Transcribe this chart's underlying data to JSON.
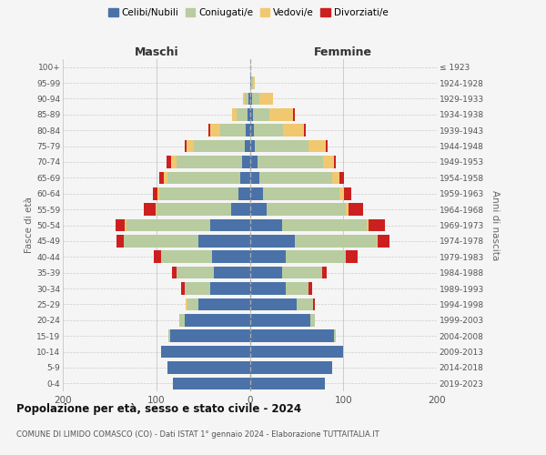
{
  "age_groups": [
    "0-4",
    "5-9",
    "10-14",
    "15-19",
    "20-24",
    "25-29",
    "30-34",
    "35-39",
    "40-44",
    "45-49",
    "50-54",
    "55-59",
    "60-64",
    "65-69",
    "70-74",
    "75-79",
    "80-84",
    "85-89",
    "90-94",
    "95-99",
    "100+"
  ],
  "birth_years": [
    "2019-2023",
    "2014-2018",
    "2009-2013",
    "2004-2008",
    "1999-2003",
    "1994-1998",
    "1989-1993",
    "1984-1988",
    "1979-1983",
    "1974-1978",
    "1969-1973",
    "1964-1968",
    "1959-1963",
    "1954-1958",
    "1949-1953",
    "1944-1948",
    "1939-1943",
    "1934-1938",
    "1929-1933",
    "1924-1928",
    "≤ 1923"
  ],
  "male": {
    "celibi": [
      82,
      88,
      95,
      85,
      70,
      55,
      42,
      38,
      40,
      55,
      42,
      20,
      12,
      10,
      8,
      5,
      4,
      2,
      1,
      0,
      0
    ],
    "coniugati": [
      0,
      0,
      0,
      2,
      5,
      12,
      28,
      40,
      55,
      80,
      90,
      80,
      85,
      78,
      70,
      55,
      28,
      12,
      4,
      0,
      0
    ],
    "vedovi": [
      0,
      0,
      0,
      0,
      0,
      2,
      0,
      0,
      0,
      0,
      2,
      1,
      2,
      4,
      6,
      8,
      10,
      5,
      2,
      0,
      0
    ],
    "divorziati": [
      0,
      0,
      0,
      0,
      0,
      0,
      3,
      5,
      8,
      8,
      10,
      12,
      5,
      5,
      5,
      2,
      2,
      0,
      0,
      0,
      0
    ]
  },
  "female": {
    "nubili": [
      80,
      88,
      100,
      90,
      65,
      50,
      38,
      35,
      38,
      48,
      35,
      18,
      14,
      10,
      8,
      5,
      4,
      3,
      2,
      1,
      0
    ],
    "coniugate": [
      0,
      0,
      0,
      2,
      5,
      18,
      25,
      42,
      65,
      88,
      90,
      85,
      82,
      78,
      70,
      58,
      32,
      18,
      8,
      2,
      0
    ],
    "vedove": [
      0,
      0,
      0,
      0,
      0,
      0,
      0,
      0,
      0,
      1,
      2,
      3,
      5,
      8,
      12,
      18,
      22,
      25,
      15,
      2,
      0
    ],
    "divorziate": [
      0,
      0,
      0,
      0,
      0,
      2,
      4,
      5,
      12,
      12,
      18,
      15,
      8,
      5,
      2,
      2,
      2,
      2,
      0,
      0,
      0
    ]
  },
  "colors": {
    "celibi": "#4a72a8",
    "coniugati": "#b8cca0",
    "vedovi": "#f0c870",
    "divorziati": "#cc2020"
  },
  "xlim": 200,
  "title": "Popolazione per età, sesso e stato civile - 2024",
  "subtitle": "COMUNE DI LIMIDO COMASCO (CO) - Dati ISTAT 1° gennaio 2024 - Elaborazione TUTTAITALIA.IT",
  "ylabel_left": "Fasce di età",
  "ylabel_right": "Anni di nascita",
  "xlabel_left": "Maschi",
  "xlabel_right": "Femmine",
  "bg_color": "#f5f5f5",
  "grid_color": "#cccccc"
}
